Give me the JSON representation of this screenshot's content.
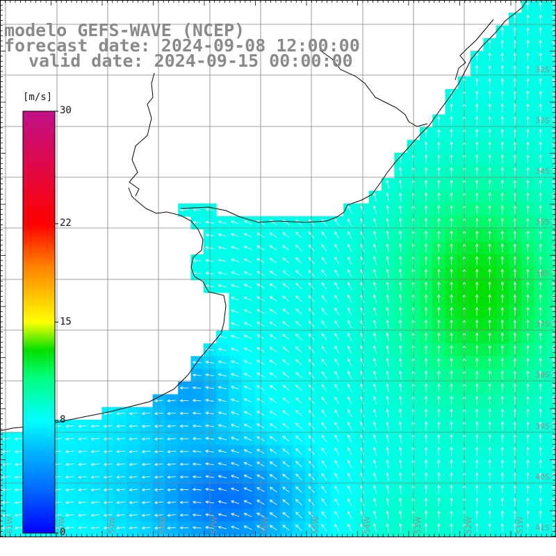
{
  "title": {
    "line1": "modelo GEFS-WAVE (NCEP)",
    "line2": "forecast date: 2024-09-08 12:00:00",
    "line3": "valid date: 2024-09-15 00:00:00"
  },
  "colorbar": {
    "units": "[m/s]",
    "min": 0,
    "max": 30,
    "ticks": [
      {
        "value": 30,
        "label": "30"
      },
      {
        "value": 22,
        "label": "22"
      },
      {
        "value": 15,
        "label": "15"
      },
      {
        "value": 8,
        "label": "8"
      },
      {
        "value": 0,
        "label": "0"
      }
    ],
    "stops": [
      {
        "value": 0,
        "color": "#0000ff"
      },
      {
        "value": 3,
        "color": "#0066ff"
      },
      {
        "value": 6,
        "color": "#00bbff"
      },
      {
        "value": 8,
        "color": "#00ffff"
      },
      {
        "value": 11,
        "color": "#00ff80"
      },
      {
        "value": 13,
        "color": "#00e000"
      },
      {
        "value": 15,
        "color": "#ffff00"
      },
      {
        "value": 19,
        "color": "#ff8000"
      },
      {
        "value": 22,
        "color": "#ff0000"
      },
      {
        "value": 30,
        "color": "#c0108a"
      }
    ]
  },
  "map": {
    "lat_labels": [
      "32S",
      "33S",
      "34S",
      "35S",
      "36S",
      "37S",
      "38S",
      "39S",
      "40S",
      "41S"
    ],
    "lon_labels": [
      "61W",
      "60W",
      "59W",
      "58W",
      "57W",
      "56W",
      "55W",
      "54W",
      "53W",
      "52W",
      "51W"
    ],
    "colors": {
      "land": "#ffffff",
      "coast": "#000000",
      "grid": "#808080",
      "arrow": "#ffffff",
      "frame": "#000000"
    }
  }
}
